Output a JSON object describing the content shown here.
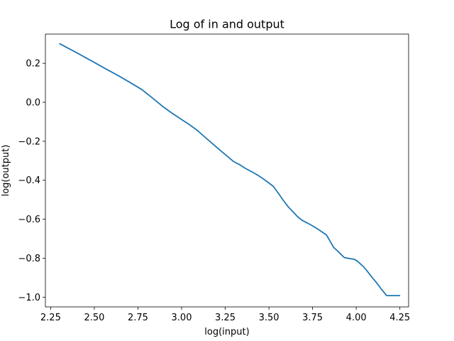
{
  "chart_data": {
    "type": "line",
    "title": "Log of in and output",
    "xlabel": "log(input)",
    "ylabel": "log(output)",
    "xlim": [
      2.22,
      4.3
    ],
    "ylim": [
      -1.05,
      0.35
    ],
    "grid": false,
    "x_ticks": [
      2.25,
      2.5,
      2.75,
      3.0,
      3.25,
      3.5,
      3.75,
      4.0,
      4.25
    ],
    "x_tick_labels": [
      "2.25",
      "2.50",
      "2.75",
      "3.00",
      "3.25",
      "3.50",
      "3.75",
      "4.00",
      "4.25"
    ],
    "y_ticks": [
      0.2,
      0.0,
      -0.2,
      -0.4,
      -0.6,
      -0.8,
      -1.0
    ],
    "y_tick_labels": [
      "0.2",
      "0.0",
      "−0.2",
      "−0.4",
      "−0.6",
      "−0.8",
      "−1.0"
    ],
    "colors": {
      "line": "#1f77b4",
      "axes": "#000000"
    },
    "series": [
      {
        "x": [
          2.303,
          2.398,
          2.485,
          2.565,
          2.639,
          2.708,
          2.773,
          2.833,
          2.89,
          2.944,
          2.996,
          3.045,
          3.091,
          3.135,
          3.178,
          3.219,
          3.258,
          3.296,
          3.332,
          3.367,
          3.401,
          3.434,
          3.466,
          3.497,
          3.526,
          3.555,
          3.584,
          3.611,
          3.638,
          3.664,
          3.689,
          3.714,
          3.738,
          3.761,
          3.784,
          3.807,
          3.829,
          3.85,
          3.871,
          3.892,
          3.912,
          3.932,
          3.951,
          3.97,
          3.989,
          4.007,
          4.025,
          4.043,
          4.06,
          4.078,
          4.094,
          4.111,
          4.127,
          4.143,
          4.159,
          4.174,
          4.19,
          4.205,
          4.22,
          4.234,
          4.248
        ],
        "y": [
          0.3,
          0.255,
          0.212,
          0.172,
          0.136,
          0.1,
          0.065,
          0.022,
          -0.02,
          -0.055,
          -0.086,
          -0.115,
          -0.145,
          -0.18,
          -0.213,
          -0.245,
          -0.274,
          -0.303,
          -0.32,
          -0.34,
          -0.356,
          -0.373,
          -0.392,
          -0.412,
          -0.432,
          -0.468,
          -0.505,
          -0.537,
          -0.562,
          -0.587,
          -0.605,
          -0.617,
          -0.628,
          -0.64,
          -0.653,
          -0.667,
          -0.68,
          -0.712,
          -0.745,
          -0.762,
          -0.78,
          -0.797,
          -0.8,
          -0.803,
          -0.806,
          -0.815,
          -0.83,
          -0.845,
          -0.863,
          -0.884,
          -0.902,
          -0.92,
          -0.938,
          -0.958,
          -0.975,
          -0.992,
          -0.992,
          -0.992,
          -0.992,
          -0.992,
          -0.992
        ]
      }
    ]
  }
}
